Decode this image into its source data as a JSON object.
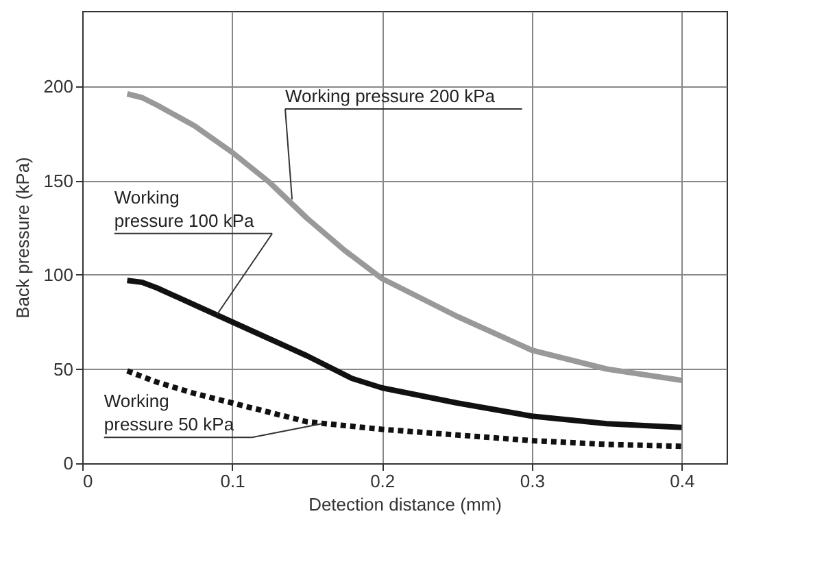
{
  "chart_data": {
    "type": "line",
    "xlabel": "Detection distance (mm)",
    "ylabel": "Back pressure (kPa)",
    "xlim": [
      0,
      0.43
    ],
    "xticks": [
      0,
      0.1,
      0.2,
      0.3,
      0.4
    ],
    "ylim": [
      0,
      240
    ],
    "yticks": [
      0,
      50,
      100,
      150,
      200
    ],
    "grid": true,
    "marker": "none",
    "series": [
      {
        "color": "#999999",
        "line_style": "solid",
        "x": [
          0.03,
          0.04,
          0.05,
          0.075,
          0.1,
          0.125,
          0.15,
          0.175,
          0.2,
          0.25,
          0.3,
          0.35,
          0.4
        ],
        "values": [
          196,
          194,
          190,
          179,
          165,
          149,
          130,
          113,
          98,
          78,
          60,
          50,
          44
        ]
      },
      {
        "color": "#111111",
        "line_style": "solid",
        "x": [
          0.03,
          0.04,
          0.05,
          0.075,
          0.1,
          0.125,
          0.15,
          0.18,
          0.2,
          0.25,
          0.3,
          0.35,
          0.4
        ],
        "values": [
          97,
          96,
          93,
          84,
          75,
          66,
          57,
          45,
          40,
          32,
          25,
          21,
          19
        ]
      },
      {
        "color": "#111111",
        "line_style": "dotted",
        "x": [
          0.03,
          0.05,
          0.075,
          0.1,
          0.125,
          0.15,
          0.175,
          0.2,
          0.25,
          0.3,
          0.35,
          0.4
        ],
        "values": [
          49,
          43,
          37,
          32,
          27,
          22,
          20,
          18,
          15,
          12,
          10,
          9
        ]
      }
    ],
    "annotations": [
      {
        "text": "Working pressure 200 kPa",
        "x": 0.14,
        "y": 140
      },
      {
        "text": "Working\npressure 100 kPa",
        "x": 0.09,
        "y": 79
      },
      {
        "text": "Working\npressure 50 kPa",
        "x": 0.16,
        "y": 21
      }
    ]
  }
}
